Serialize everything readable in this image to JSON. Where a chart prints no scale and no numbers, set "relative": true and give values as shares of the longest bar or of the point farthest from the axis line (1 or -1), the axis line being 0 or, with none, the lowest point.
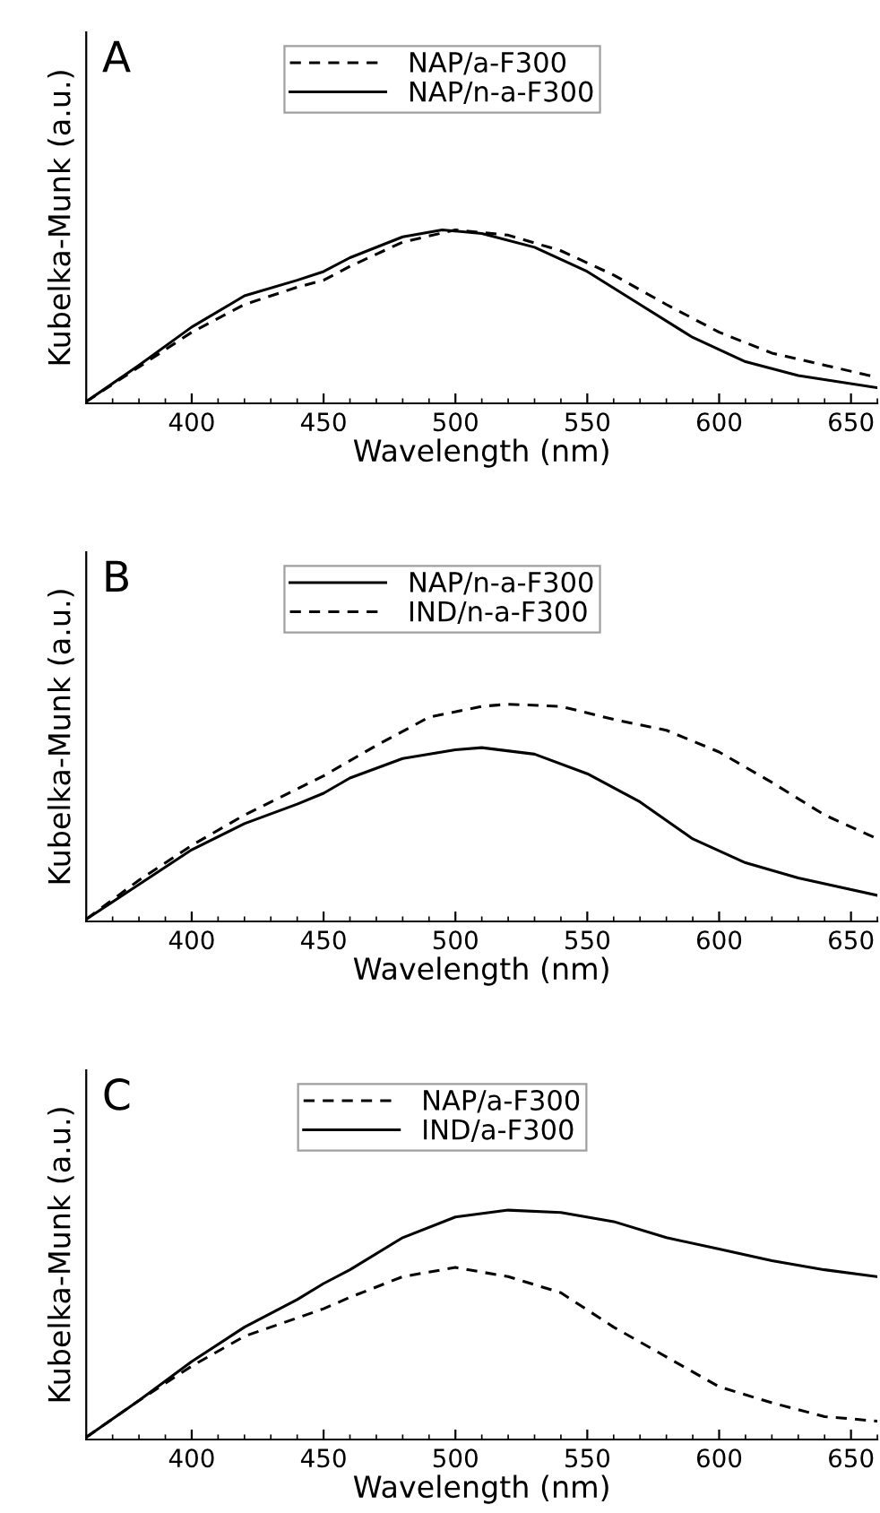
{
  "chart_data": [
    {
      "type": "line",
      "title": "A",
      "xlabel": "Wavelength (nm)",
      "ylabel": "Kubelka-Munk (a.u.)",
      "relative": true,
      "xlim": [
        360,
        660
      ],
      "xticks": [
        400,
        450,
        500,
        550,
        600,
        650
      ],
      "legend": "top",
      "grid": false,
      "series": [
        {
          "name": "NAP/a-F300",
          "color": "#000000",
          "line_style": "dashed",
          "x": [
            360,
            380,
            400,
            420,
            440,
            450,
            460,
            480,
            500,
            520,
            540,
            560,
            580,
            600,
            620,
            640,
            660
          ],
          "values": [
            0.01,
            0.21,
            0.41,
            0.57,
            0.67,
            0.71,
            0.79,
            0.93,
            1.0,
            0.97,
            0.88,
            0.74,
            0.57,
            0.41,
            0.29,
            0.22,
            0.15
          ]
        },
        {
          "name": "NAP/n-a-F300",
          "color": "#000000",
          "line_style": "solid",
          "x": [
            360,
            380,
            400,
            420,
            440,
            450,
            460,
            480,
            495,
            510,
            530,
            550,
            570,
            590,
            610,
            630,
            660
          ],
          "values": [
            0.01,
            0.22,
            0.44,
            0.62,
            0.71,
            0.76,
            0.84,
            0.96,
            1.0,
            0.98,
            0.9,
            0.76,
            0.57,
            0.38,
            0.24,
            0.16,
            0.09
          ]
        }
      ]
    },
    {
      "type": "line",
      "title": "B",
      "xlabel": "Wavelength (nm)",
      "ylabel": "Kubelka-Munk (a.u.)",
      "relative": true,
      "xlim": [
        360,
        660
      ],
      "xticks": [
        400,
        450,
        500,
        550,
        600,
        650
      ],
      "legend": "top",
      "grid": false,
      "series": [
        {
          "name": "NAP/n-a-F300",
          "color": "#000000",
          "line_style": "solid",
          "x": [
            360,
            380,
            400,
            420,
            440,
            450,
            460,
            480,
            500,
            510,
            530,
            550,
            570,
            590,
            610,
            630,
            660
          ],
          "values": [
            0.01,
            0.17,
            0.33,
            0.45,
            0.54,
            0.59,
            0.66,
            0.75,
            0.79,
            0.8,
            0.77,
            0.68,
            0.55,
            0.38,
            0.27,
            0.2,
            0.12
          ]
        },
        {
          "name": "IND/n-a-F300",
          "color": "#000000",
          "line_style": "dashed",
          "x": [
            360,
            380,
            400,
            420,
            440,
            450,
            470,
            490,
            510,
            520,
            540,
            560,
            580,
            600,
            620,
            640,
            660
          ],
          "values": [
            0.01,
            0.19,
            0.35,
            0.49,
            0.61,
            0.67,
            0.81,
            0.94,
            0.99,
            1.0,
            0.99,
            0.93,
            0.88,
            0.78,
            0.64,
            0.49,
            0.38
          ]
        }
      ]
    },
    {
      "type": "line",
      "title": "C",
      "xlabel": "Wavelength (nm)",
      "ylabel": "Kubelka-Munk (a.u.)",
      "relative": true,
      "xlim": [
        360,
        660
      ],
      "xticks": [
        400,
        450,
        500,
        550,
        600,
        650
      ],
      "legend": "top",
      "grid": false,
      "series": [
        {
          "name": "NAP/a-F300",
          "color": "#000000",
          "line_style": "dashed",
          "x": [
            360,
            380,
            400,
            420,
            440,
            450,
            460,
            480,
            500,
            520,
            540,
            560,
            580,
            600,
            620,
            640,
            660
          ],
          "values": [
            0.01,
            0.17,
            0.32,
            0.45,
            0.53,
            0.57,
            0.62,
            0.71,
            0.75,
            0.71,
            0.64,
            0.49,
            0.36,
            0.23,
            0.16,
            0.1,
            0.08
          ]
        },
        {
          "name": "IND/a-F300",
          "color": "#000000",
          "line_style": "solid",
          "x": [
            360,
            380,
            400,
            420,
            440,
            450,
            460,
            480,
            500,
            520,
            540,
            560,
            580,
            600,
            620,
            640,
            660
          ],
          "values": [
            0.01,
            0.17,
            0.34,
            0.49,
            0.61,
            0.68,
            0.74,
            0.88,
            0.97,
            1.0,
            0.99,
            0.95,
            0.88,
            0.83,
            0.78,
            0.74,
            0.71
          ]
        }
      ]
    }
  ]
}
